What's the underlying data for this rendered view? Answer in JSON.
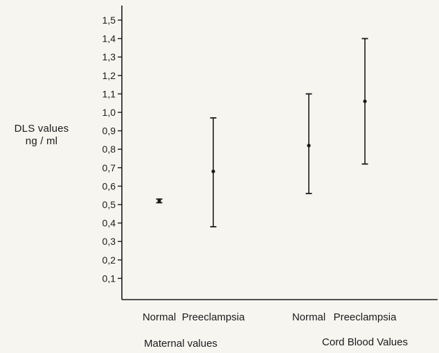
{
  "chart_data": {
    "type": "errorbar",
    "ylabel": [
      "DLS values",
      "ng / ml"
    ],
    "ylim": [
      0,
      1.55
    ],
    "y_ticks": [
      "0,1",
      "0,2",
      "0,3",
      "0,4",
      "0,5",
      "0,6",
      "0,7",
      "0,8",
      "0,9",
      "1,0",
      "1,1",
      "1,2",
      "1,3",
      "1,4",
      "1,5"
    ],
    "y_tick_values": [
      0.1,
      0.2,
      0.3,
      0.4,
      0.5,
      0.6,
      0.7,
      0.8,
      0.9,
      1.0,
      1.1,
      1.2,
      1.3,
      1.4,
      1.5
    ],
    "categories": [
      "Normal",
      "Preeclampsia",
      "Normal",
      "Preeclampsia"
    ],
    "groups": [
      {
        "label": "Maternal values",
        "categories": [
          "Normal",
          "Preeclampsia"
        ]
      },
      {
        "label": "Cord Blood Values",
        "categories": [
          "Normal",
          "Preeclampsia"
        ]
      }
    ],
    "points": [
      {
        "category": "Normal",
        "group": "Maternal values",
        "mean": 0.52,
        "low": 0.51,
        "high": 0.53
      },
      {
        "category": "Preeclampsia",
        "group": "Maternal values",
        "mean": 0.68,
        "low": 0.38,
        "high": 0.97
      },
      {
        "category": "Normal",
        "group": "Cord Blood Values",
        "mean": 0.82,
        "low": 0.56,
        "high": 1.1
      },
      {
        "category": "Preeclampsia",
        "group": "Cord Blood Values",
        "mean": 1.06,
        "low": 0.72,
        "high": 1.4
      }
    ],
    "grid": false,
    "legend": "none"
  },
  "colors": {
    "background": "#f7f5f0",
    "ink": "#1a1a1a"
  }
}
